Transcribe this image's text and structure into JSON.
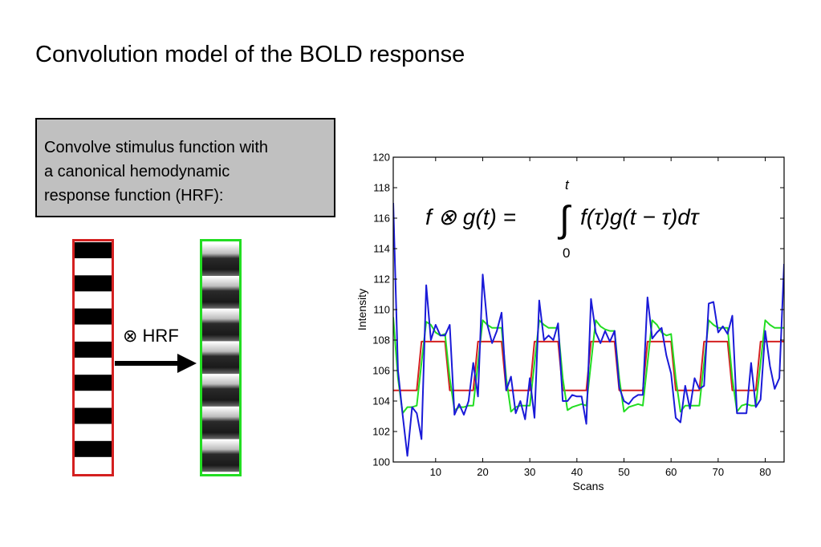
{
  "slide": {
    "title": "Convolution model of the BOLD response",
    "box_text": "Convolve stimulus function with a canonical hemodynamic response function (HRF):",
    "box_lines": [
      "Convolve stimulus function with",
      "a canonical hemodynamic",
      "response function (HRF):"
    ],
    "arrow_label": "⊗ HRF",
    "colors": {
      "stimulus_frame": "#d42020",
      "bold_frame": "#22dd22",
      "box_fill": "#c0c0c0"
    }
  },
  "formula": {
    "lhs": "f ⊗ g(t) = ",
    "integrand": "f(τ)g(t − τ)dτ",
    "upper_limit": "t",
    "lower_limit": "0"
  },
  "chart_data": {
    "type": "line",
    "xlabel": "Scans",
    "ylabel": "Intensity",
    "xlim": [
      1,
      84
    ],
    "ylim": [
      100,
      120
    ],
    "xticks": [
      10,
      20,
      30,
      40,
      50,
      60,
      70,
      80
    ],
    "yticks": [
      100,
      102,
      104,
      106,
      108,
      110,
      112,
      114,
      116,
      118,
      120
    ],
    "grid": false,
    "series": [
      {
        "color": "#d42020",
        "points": [
          [
            1,
            104.7
          ],
          [
            6,
            104.7
          ],
          [
            7,
            107.9
          ],
          [
            12,
            107.9
          ],
          [
            13,
            104.7
          ],
          [
            18,
            104.7
          ],
          [
            19,
            107.9
          ],
          [
            24,
            107.9
          ],
          [
            25,
            104.7
          ],
          [
            30,
            104.7
          ],
          [
            31,
            107.9
          ],
          [
            36,
            107.9
          ],
          [
            37,
            104.7
          ],
          [
            42,
            104.7
          ],
          [
            43,
            107.9
          ],
          [
            48,
            107.9
          ],
          [
            49,
            104.7
          ],
          [
            54,
            104.7
          ],
          [
            55,
            107.9
          ],
          [
            60,
            107.9
          ],
          [
            61,
            104.7
          ],
          [
            66,
            104.7
          ],
          [
            67,
            107.9
          ],
          [
            72,
            107.9
          ],
          [
            73,
            104.7
          ],
          [
            78,
            104.7
          ],
          [
            79,
            107.9
          ],
          [
            84,
            107.9
          ]
        ]
      },
      {
        "color": "#22dd22",
        "points": [
          [
            1,
            109.5
          ],
          [
            2,
            105.5
          ],
          [
            3,
            103.2
          ],
          [
            4,
            103.6
          ],
          [
            5,
            103.6
          ],
          [
            6,
            103.7
          ],
          [
            7,
            106.5
          ],
          [
            8,
            109.2
          ],
          [
            9,
            109.0
          ],
          [
            10,
            108.5
          ],
          [
            11,
            108.3
          ],
          [
            12,
            108.4
          ],
          [
            13,
            105.5
          ],
          [
            14,
            103.4
          ],
          [
            15,
            103.6
          ],
          [
            16,
            103.6
          ],
          [
            17,
            103.7
          ],
          [
            18,
            103.7
          ],
          [
            19,
            106.5
          ],
          [
            20,
            109.3
          ],
          [
            21,
            109.0
          ],
          [
            22,
            108.8
          ],
          [
            23,
            108.8
          ],
          [
            24,
            108.8
          ],
          [
            25,
            105.5
          ],
          [
            26,
            103.3
          ],
          [
            27,
            103.6
          ],
          [
            28,
            103.7
          ],
          [
            29,
            103.7
          ],
          [
            30,
            103.7
          ],
          [
            31,
            106.5
          ],
          [
            32,
            109.3
          ],
          [
            33,
            109.0
          ],
          [
            34,
            108.8
          ],
          [
            35,
            108.8
          ],
          [
            36,
            108.8
          ],
          [
            37,
            105.5
          ],
          [
            38,
            103.4
          ],
          [
            39,
            103.6
          ],
          [
            40,
            103.7
          ],
          [
            41,
            103.8
          ],
          [
            42,
            103.7
          ],
          [
            43,
            106.5
          ],
          [
            44,
            109.3
          ],
          [
            45,
            108.9
          ],
          [
            46,
            108.7
          ],
          [
            47,
            108.6
          ],
          [
            48,
            108.6
          ],
          [
            49,
            105.5
          ],
          [
            50,
            103.3
          ],
          [
            51,
            103.6
          ],
          [
            52,
            103.7
          ],
          [
            53,
            103.8
          ],
          [
            54,
            103.7
          ],
          [
            55,
            106.5
          ],
          [
            56,
            109.3
          ],
          [
            57,
            109.0
          ],
          [
            58,
            108.5
          ],
          [
            59,
            108.3
          ],
          [
            60,
            108.4
          ],
          [
            61,
            105.5
          ],
          [
            62,
            103.3
          ],
          [
            63,
            103.7
          ],
          [
            64,
            103.7
          ],
          [
            65,
            103.7
          ],
          [
            66,
            103.7
          ],
          [
            67,
            106.5
          ],
          [
            68,
            109.3
          ],
          [
            69,
            109.0
          ],
          [
            70,
            108.8
          ],
          [
            71,
            108.8
          ],
          [
            72,
            108.8
          ],
          [
            73,
            105.5
          ],
          [
            74,
            103.3
          ],
          [
            75,
            103.7
          ],
          [
            76,
            103.8
          ],
          [
            77,
            103.7
          ],
          [
            78,
            103.7
          ],
          [
            79,
            106.5
          ],
          [
            80,
            109.3
          ],
          [
            81,
            109.0
          ],
          [
            82,
            108.8
          ],
          [
            83,
            108.8
          ],
          [
            84,
            108.8
          ]
        ]
      },
      {
        "color": "#1a1ad8",
        "points": [
          [
            1,
            117.0
          ],
          [
            2,
            106.0
          ],
          [
            3,
            103.1
          ],
          [
            4,
            100.4
          ],
          [
            5,
            103.6
          ],
          [
            6,
            103.2
          ],
          [
            7,
            101.5
          ],
          [
            8,
            111.6
          ],
          [
            9,
            108.0
          ],
          [
            10,
            109.0
          ],
          [
            11,
            108.3
          ],
          [
            12,
            108.3
          ],
          [
            13,
            109.0
          ],
          [
            14,
            103.1
          ],
          [
            15,
            103.8
          ],
          [
            16,
            103.1
          ],
          [
            17,
            104.0
          ],
          [
            18,
            106.5
          ],
          [
            19,
            104.3
          ],
          [
            20,
            112.3
          ],
          [
            21,
            109.0
          ],
          [
            22,
            107.8
          ],
          [
            23,
            108.6
          ],
          [
            24,
            109.8
          ],
          [
            25,
            104.7
          ],
          [
            26,
            105.6
          ],
          [
            27,
            103.2
          ],
          [
            28,
            104.0
          ],
          [
            29,
            102.8
          ],
          [
            30,
            105.5
          ],
          [
            31,
            102.9
          ],
          [
            32,
            110.6
          ],
          [
            33,
            108.0
          ],
          [
            34,
            108.3
          ],
          [
            35,
            108.0
          ],
          [
            36,
            109.1
          ],
          [
            37,
            104.0
          ],
          [
            38,
            104.0
          ],
          [
            39,
            104.4
          ],
          [
            40,
            104.3
          ],
          [
            41,
            104.3
          ],
          [
            42,
            102.5
          ],
          [
            43,
            110.7
          ],
          [
            44,
            108.5
          ],
          [
            45,
            107.8
          ],
          [
            46,
            108.6
          ],
          [
            47,
            107.9
          ],
          [
            48,
            108.6
          ],
          [
            49,
            104.9
          ],
          [
            50,
            104.0
          ],
          [
            51,
            103.8
          ],
          [
            52,
            104.2
          ],
          [
            53,
            104.4
          ],
          [
            54,
            104.4
          ],
          [
            55,
            110.8
          ],
          [
            56,
            108.1
          ],
          [
            57,
            108.5
          ],
          [
            58,
            108.8
          ],
          [
            59,
            107.0
          ],
          [
            60,
            105.8
          ],
          [
            61,
            102.9
          ],
          [
            62,
            102.6
          ],
          [
            63,
            105.0
          ],
          [
            64,
            103.5
          ],
          [
            65,
            105.5
          ],
          [
            66,
            104.8
          ],
          [
            67,
            105.0
          ],
          [
            68,
            110.4
          ],
          [
            69,
            110.5
          ],
          [
            70,
            108.5
          ],
          [
            71,
            108.9
          ],
          [
            72,
            108.4
          ],
          [
            73,
            109.6
          ],
          [
            74,
            103.2
          ],
          [
            75,
            103.2
          ],
          [
            76,
            103.2
          ],
          [
            77,
            106.5
          ],
          [
            78,
            103.6
          ],
          [
            79,
            104.1
          ],
          [
            80,
            108.6
          ],
          [
            81,
            106.3
          ],
          [
            82,
            104.8
          ],
          [
            83,
            105.5
          ],
          [
            84,
            113.0
          ]
        ]
      }
    ]
  }
}
